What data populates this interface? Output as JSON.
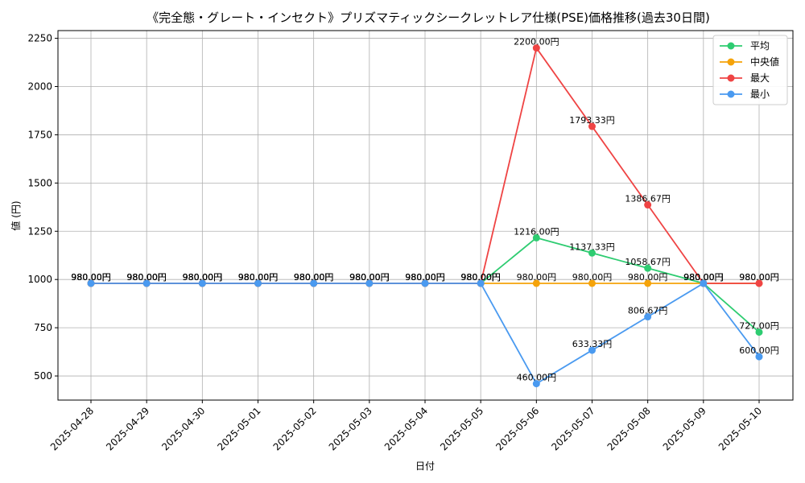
{
  "chart_data": {
    "type": "line",
    "title": "《完全態・グレート・インセクト》プリズマティックシークレットレア仕様(PSE)価格推移(過去30日間)",
    "xlabel": "日付",
    "ylabel": "値 (円)",
    "x": [
      "2025-04-28",
      "2025-04-29",
      "2025-04-30",
      "2025-05-01",
      "2025-05-02",
      "2025-05-03",
      "2025-05-04",
      "2025-05-05",
      "2025-05-06",
      "2025-05-07",
      "2025-05-08",
      "2025-05-09",
      "2025-05-10"
    ],
    "ylim": [
      375,
      2290
    ],
    "yticks": [
      500,
      750,
      1000,
      1250,
      1500,
      1750,
      2000,
      2250
    ],
    "grid": true,
    "legend_position": "top-right",
    "series": [
      {
        "name": "平均",
        "color": "#2ecc71",
        "values": [
          980,
          980,
          980,
          980,
          980,
          980,
          980,
          980,
          1216,
          1137.33,
          1058.67,
          980,
          727
        ],
        "labels": [
          "980.00円",
          "980.00円",
          "980.00円",
          "980.00円",
          "980.00円",
          "980.00円",
          "980.00円",
          "980.00円",
          "1216.00円",
          "1137.33円",
          "1058.67円",
          "980.00円",
          "727.00円"
        ]
      },
      {
        "name": "中央値",
        "color": "#f5a30a",
        "values": [
          980,
          980,
          980,
          980,
          980,
          980,
          980,
          980,
          980,
          980,
          980,
          980,
          980
        ],
        "labels": [
          "980.00円",
          "980.00円",
          "980.00円",
          "980.00円",
          "980.00円",
          "980.00円",
          "980.00円",
          "980.00円",
          "980.00円",
          "980.00円",
          "980.00円",
          "980.00円",
          "980.00円"
        ]
      },
      {
        "name": "最大",
        "color": "#ef4444",
        "values": [
          980,
          980,
          980,
          980,
          980,
          980,
          980,
          980,
          2200,
          1793.33,
          1386.67,
          980,
          980
        ],
        "labels": [
          "980.00円",
          "980.00円",
          "980.00円",
          "980.00円",
          "980.00円",
          "980.00円",
          "980.00円",
          "980.00円",
          "2200.00円",
          "1793.33円",
          "1386.67円",
          "980.00円",
          "980.00円"
        ]
      },
      {
        "name": "最小",
        "color": "#4a9af0",
        "values": [
          980,
          980,
          980,
          980,
          980,
          980,
          980,
          980,
          460,
          633.33,
          806.67,
          980,
          600
        ],
        "labels": [
          "980.00円",
          "980.00円",
          "980.00円",
          "980.00円",
          "980.00円",
          "980.00円",
          "980.00円",
          "980.00円",
          "460.00円",
          "633.33円",
          "806.67円",
          "980.00円",
          "600.00円"
        ]
      }
    ]
  }
}
